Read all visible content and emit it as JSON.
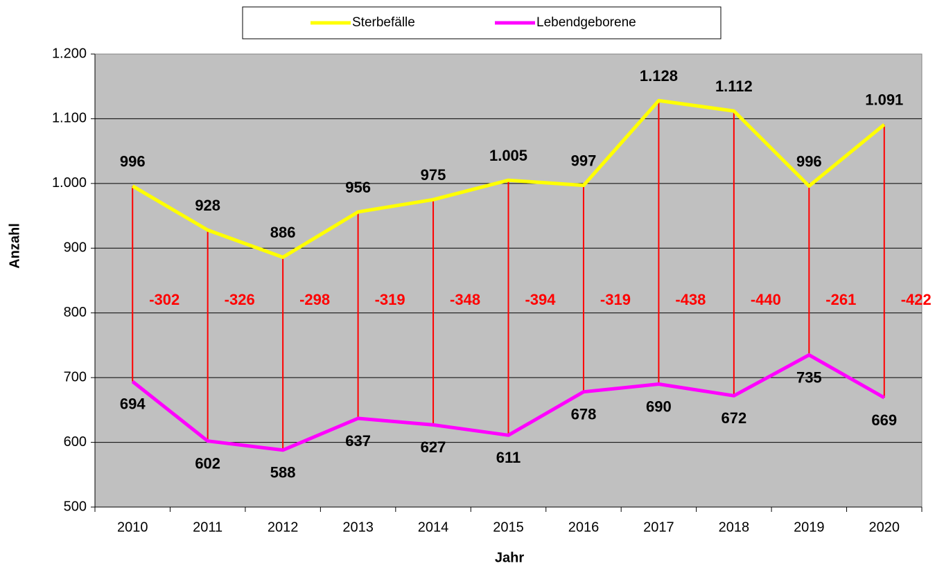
{
  "chart_data": {
    "type": "line",
    "categories": [
      "2010",
      "2011",
      "2012",
      "2013",
      "2014",
      "2015",
      "2016",
      "2017",
      "2018",
      "2019",
      "2020"
    ],
    "series": [
      {
        "name": "Sterbefälle",
        "color": "#ffff00",
        "values": [
          996,
          928,
          886,
          956,
          975,
          1005,
          997,
          1128,
          1112,
          996,
          1091
        ],
        "value_labels": [
          "996",
          "928",
          "886",
          "956",
          "975",
          "1.005",
          "997",
          "1.128",
          "1.112",
          "996",
          "1.091"
        ]
      },
      {
        "name": "Lebendgeborene",
        "color": "#ff00ff",
        "values": [
          694,
          602,
          588,
          637,
          627,
          611,
          678,
          690,
          672,
          735,
          669
        ]
      }
    ],
    "differences": {
      "color": "#ff0000",
      "values": [
        -302,
        -326,
        -298,
        -319,
        -348,
        -394,
        -319,
        -438,
        -440,
        -261,
        -422
      ]
    },
    "xlabel": "Jahr",
    "ylabel": "Anzahl",
    "ylim": [
      500,
      1200
    ],
    "yticks": [
      500,
      600,
      700,
      800,
      900,
      {
        "value": 1000,
        "label": "1.000"
      },
      {
        "value": 1100,
        "label": "1.100"
      },
      {
        "value": 1200,
        "label": "1.200"
      }
    ],
    "grid": true,
    "legend": "top",
    "background": "#c0c0c0"
  }
}
